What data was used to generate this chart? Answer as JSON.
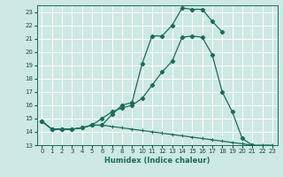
{
  "xlabel": "Humidex (Indice chaleur)",
  "bg_color": "#cde8e5",
  "grid_color": "#ffffff",
  "line_color": "#1a6b5a",
  "xlim": [
    -0.5,
    23.5
  ],
  "ylim": [
    13,
    23.5
  ],
  "yticks": [
    13,
    14,
    15,
    16,
    17,
    18,
    19,
    20,
    21,
    22,
    23
  ],
  "xticks": [
    0,
    1,
    2,
    3,
    4,
    5,
    6,
    7,
    8,
    9,
    10,
    11,
    12,
    13,
    14,
    15,
    16,
    17,
    18,
    19,
    20,
    21,
    22,
    23
  ],
  "line_top_x": [
    0,
    1,
    2,
    3,
    4,
    5,
    6,
    7,
    8,
    9,
    10,
    11,
    12,
    13,
    14,
    15,
    16,
    17,
    18
  ],
  "line_top_y": [
    14.8,
    14.2,
    14.2,
    14.2,
    14.3,
    14.5,
    14.5,
    15.3,
    16.0,
    16.2,
    19.1,
    21.2,
    21.2,
    22.0,
    23.3,
    23.2,
    23.2,
    22.3,
    21.5
  ],
  "line_mid_x": [
    0,
    1,
    2,
    3,
    4,
    5,
    6,
    7,
    8,
    9,
    10,
    11,
    12,
    13,
    14,
    15,
    16,
    17,
    18,
    19,
    20,
    21
  ],
  "line_mid_y": [
    14.8,
    14.2,
    14.2,
    14.2,
    14.3,
    14.5,
    15.0,
    15.5,
    15.8,
    16.0,
    16.5,
    17.5,
    18.5,
    19.3,
    21.1,
    21.2,
    21.1,
    19.8,
    17.0,
    15.5,
    13.5,
    13.0
  ],
  "line_bot_x": [
    0,
    1,
    2,
    3,
    4,
    5,
    6,
    7,
    8,
    9,
    10,
    11,
    12,
    13,
    14,
    15,
    16,
    17,
    18,
    19,
    20,
    21,
    22,
    23
  ],
  "line_bot_y": [
    14.8,
    14.2,
    14.2,
    14.2,
    14.3,
    14.5,
    14.5,
    14.4,
    14.3,
    14.2,
    14.1,
    14.0,
    13.9,
    13.8,
    13.7,
    13.6,
    13.5,
    13.4,
    13.3,
    13.2,
    13.1,
    13.0,
    13.0,
    13.0
  ]
}
